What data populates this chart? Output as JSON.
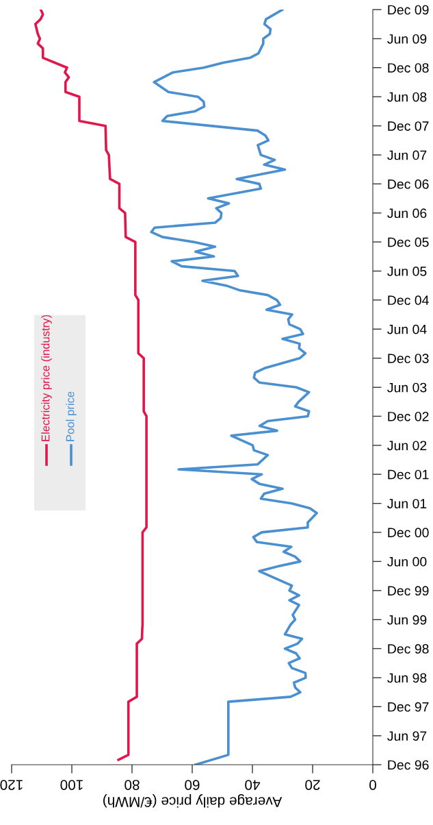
{
  "chart_data": {
    "type": "line",
    "orientation": "horizontal",
    "xlabel": "Average daily price (€/MWh)",
    "xlim": [
      120,
      0
    ],
    "xticks": [
      120,
      100,
      80,
      60,
      40,
      20,
      0
    ],
    "ylim": [
      "1996-12",
      "2009-12"
    ],
    "yticks": [
      {
        "value": "1996-12",
        "label": "Dec 96"
      },
      {
        "value": "1997-06",
        "label": "Jun 97"
      },
      {
        "value": "1997-12",
        "label": "Dec 97"
      },
      {
        "value": "1998-06",
        "label": "Jun 98"
      },
      {
        "value": "1998-12",
        "label": "Dec 98"
      },
      {
        "value": "1999-06",
        "label": "Jun 99"
      },
      {
        "value": "1999-12",
        "label": "Dec 99"
      },
      {
        "value": "2000-06",
        "label": "Jun 00"
      },
      {
        "value": "2000-12",
        "label": "Dec 00"
      },
      {
        "value": "2001-06",
        "label": "Jun 01"
      },
      {
        "value": "2001-12",
        "label": "Dec 01"
      },
      {
        "value": "2002-06",
        "label": "Jun 02"
      },
      {
        "value": "2002-12",
        "label": "Dec 02"
      },
      {
        "value": "2003-06",
        "label": "Jun 03"
      },
      {
        "value": "2003-12",
        "label": "Dec 03"
      },
      {
        "value": "2004-06",
        "label": "Jun 04"
      },
      {
        "value": "2004-12",
        "label": "Dec 04"
      },
      {
        "value": "2005-06",
        "label": "Jun 05"
      },
      {
        "value": "2005-12",
        "label": "Dec 05"
      },
      {
        "value": "2006-06",
        "label": "Jun 06"
      },
      {
        "value": "2006-12",
        "label": "Dec 06"
      },
      {
        "value": "2007-06",
        "label": "Jun 07"
      },
      {
        "value": "2007-12",
        "label": "Dec 07"
      },
      {
        "value": "2008-06",
        "label": "Jun 08"
      },
      {
        "value": "2008-12",
        "label": "Dec 08"
      },
      {
        "value": "2009-06",
        "label": "Jun 09"
      },
      {
        "value": "2009-12",
        "label": "Dec 09"
      }
    ],
    "grid": false,
    "legend": "left",
    "marker": "none",
    "line_style": "solid",
    "series": [
      {
        "name": "Electricity price (industry)",
        "color": "#e0174a",
        "x": [
          "1997-01",
          "1997-02",
          "1998-01",
          "1998-02",
          "1999-01",
          "1999-02",
          "1999-04",
          "1999-05",
          "2000-12",
          "2001-01",
          "2002-12",
          "2003-01",
          "2003-12",
          "2004-01",
          "2004-12",
          "2005-01",
          "2005-12",
          "2006-01",
          "2006-06",
          "2006-07",
          "2006-12",
          "2007-01",
          "2007-06",
          "2007-07",
          "2007-12",
          "2008-01",
          "2008-06",
          "2008-07",
          "2008-09",
          "2008-10",
          "2008-11",
          "2008-12",
          "2009-02",
          "2009-04",
          "2009-05",
          "2009-06",
          "2009-07",
          "2009-09",
          "2009-10",
          "2009-11",
          "2009-12"
        ],
        "values": [
          84.5,
          81.2,
          81.2,
          78.4,
          78.4,
          76.7,
          76.6,
          76.5,
          76.5,
          75.2,
          75.2,
          76.1,
          76.1,
          77.9,
          77.9,
          78.9,
          78.9,
          82.1,
          82.3,
          84.2,
          84.2,
          87.3,
          87.7,
          88.6,
          88.8,
          97.5,
          97.5,
          102.1,
          102.1,
          101.0,
          102.3,
          101.6,
          109.6,
          109.6,
          111.3,
          110.6,
          111.3,
          112.1,
          110.4,
          109.6,
          110.3
        ]
      },
      {
        "name": "Pool price",
        "color": "#4a8fd0",
        "x": [
          "1996-12",
          "1997-02",
          "1998-01",
          "1998-02",
          "1998-03",
          "1998-04",
          "1998-05",
          "1998-06",
          "1998-07",
          "1998-08",
          "1998-09",
          "1998-10",
          "1998-11",
          "1998-12",
          "1999-01",
          "1999-02",
          "1999-03",
          "1999-05",
          "1999-06",
          "1999-07",
          "1999-09",
          "1999-10",
          "1999-11",
          "1999-12",
          "2000-01",
          "2000-04",
          "2000-05",
          "2000-06",
          "2000-07",
          "2000-08",
          "2000-09",
          "2000-10",
          "2000-11",
          "2000-12",
          "2001-01",
          "2001-02",
          "2001-04",
          "2001-05",
          "2001-06",
          "2001-07",
          "2001-08",
          "2001-09",
          "2001-10",
          "2001-11",
          "2001-12",
          "2002-01",
          "2002-02",
          "2002-04",
          "2002-05",
          "2002-06",
          "2002-08",
          "2002-09",
          "2002-10",
          "2002-11",
          "2002-12",
          "2003-01",
          "2003-02",
          "2003-03",
          "2003-05",
          "2003-06",
          "2003-07",
          "2003-08",
          "2003-09",
          "2003-10",
          "2003-12",
          "2004-01",
          "2004-02",
          "2004-03",
          "2004-04",
          "2004-05",
          "2004-06",
          "2004-07",
          "2004-08",
          "2004-09",
          "2004-10",
          "2004-11",
          "2004-12",
          "2005-01",
          "2005-02",
          "2005-03",
          "2005-04",
          "2005-05",
          "2005-06",
          "2005-07",
          "2005-08",
          "2005-09",
          "2005-10",
          "2005-11",
          "2005-12",
          "2006-01",
          "2006-02",
          "2006-03",
          "2006-04",
          "2006-05",
          "2006-06",
          "2006-07",
          "2006-08",
          "2006-09",
          "2006-11",
          "2006-12",
          "2007-01",
          "2007-03",
          "2007-04",
          "2007-05",
          "2007-06",
          "2007-08",
          "2007-09",
          "2007-10",
          "2007-11",
          "2008-01",
          "2008-02",
          "2008-03",
          "2008-04",
          "2008-05",
          "2008-06",
          "2008-07",
          "2008-09",
          "2008-11",
          "2008-12",
          "2009-01",
          "2009-02",
          "2009-03",
          "2009-05",
          "2009-06",
          "2009-07",
          "2009-08",
          "2009-09",
          "2009-10",
          "2009-12"
        ],
        "values": [
          58.9,
          48.0,
          48.0,
          27.3,
          24.1,
          25.8,
          26.2,
          22.3,
          22.4,
          26.9,
          27.9,
          24.3,
          25.5,
          29.2,
          25.0,
          23.5,
          29.2,
          27.3,
          25.8,
          26.6,
          24.5,
          27.7,
          24.5,
          27.7,
          26.9,
          37.7,
          31.5,
          24.1,
          25.8,
          29.6,
          27.1,
          38.5,
          39.7,
          36.9,
          21.6,
          21.6,
          18.6,
          20.9,
          26.9,
          37.2,
          36.1,
          30.0,
          37.6,
          40.2,
          36.9,
          64.5,
          38.3,
          34.9,
          39.5,
          39.9,
          47.0,
          31.8,
          37.6,
          34.9,
          21.6,
          21.2,
          25.8,
          24.7,
          21.2,
          25.4,
          37.7,
          39.5,
          39.1,
          35.7,
          24.3,
          22.4,
          24.5,
          24.3,
          30.0,
          23.2,
          24.1,
          27.7,
          28.1,
          26.8,
          35.3,
          30.8,
          31.9,
          34.9,
          44.4,
          48.6,
          56.6,
          44.8,
          45.9,
          63.5,
          66.8,
          52.8,
          58.9,
          52.4,
          59.6,
          69.9,
          73.6,
          72.5,
          52.4,
          50.5,
          50.3,
          52.0,
          47.8,
          54.7,
          37.2,
          37.7,
          45.2,
          29.2,
          36.1,
          32.6,
          37.2,
          38.2,
          34.7,
          35.7,
          38.3,
          69.9,
          68.3,
          59.2,
          56.0,
          56.2,
          58.1,
          67.9,
          72.7,
          66.4,
          56.2,
          49.7,
          40.8,
          38.0,
          36.4,
          36.4,
          34.2,
          34.0,
          36.0,
          35.5,
          30.0
        ]
      }
    ]
  }
}
